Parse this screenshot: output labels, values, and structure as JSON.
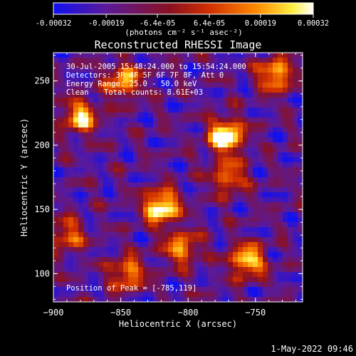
{
  "colorbar": {
    "tick_labels": [
      "-0.00032",
      "-0.00019",
      "-6.4e-05",
      "6.4e-05",
      "0.00019",
      "0.00032"
    ],
    "tick_values": [
      -0.00032,
      -0.00019,
      -6.4e-05,
      6.4e-05,
      0.00019,
      0.00032
    ],
    "range": [
      -0.00032,
      0.00032
    ],
    "units": "(photons cm⁻² s⁻¹ asec⁻²)",
    "colormap": [
      "#1010f0",
      "#5a1a9a",
      "#8a1020",
      "#d03000",
      "#ff8a00",
      "#ffee40",
      "#ffffff"
    ]
  },
  "chart_data": {
    "type": "heatmap",
    "title": "Reconstructed RHESSI Image",
    "xlabel": "Heliocentric X (arcsec)",
    "ylabel": "Heliocentric Y (arcsec)",
    "xlim": [
      -900,
      -715
    ],
    "ylim": [
      78,
      272
    ],
    "x_ticks": [
      -900,
      -850,
      -800,
      -750
    ],
    "x_tick_labels": [
      "−900",
      "−850",
      "−800",
      "−750"
    ],
    "y_ticks": [
      100,
      150,
      200,
      250
    ],
    "y_tick_labels": [
      "100",
      "150",
      "200",
      "250"
    ],
    "peak": {
      "x": -785,
      "y": 119
    },
    "annotations": {
      "time": "30-Jul-2005 15:48:24.000 to 15:54:24.000",
      "detectors": "Detectors: 3F 4F 5F 6F 7F 8F, Att 0",
      "energy": "Energy Range: 25.0 - 50.0 keV",
      "clean_label": "Clean",
      "total_counts": "Total counts: 8.61E+03",
      "peak_label": "Position of Peak = [-785,119]"
    },
    "bright_sources": [
      {
        "x": -772,
        "y": 207,
        "level": 0.95
      },
      {
        "x": -820,
        "y": 152,
        "level": 0.9
      },
      {
        "x": -880,
        "y": 222,
        "level": 0.7
      },
      {
        "x": -756,
        "y": 110,
        "level": 0.75
      },
      {
        "x": -735,
        "y": 255,
        "level": 0.7
      },
      {
        "x": -848,
        "y": 250,
        "level": 0.65
      },
      {
        "x": -845,
        "y": 100,
        "level": 0.6
      },
      {
        "x": -770,
        "y": 175,
        "level": 0.55
      },
      {
        "x": -805,
        "y": 120,
        "level": 0.6
      },
      {
        "x": -890,
        "y": 130,
        "level": 0.5
      }
    ]
  },
  "footer": {
    "timestamp": "1-May-2022 09:46"
  }
}
